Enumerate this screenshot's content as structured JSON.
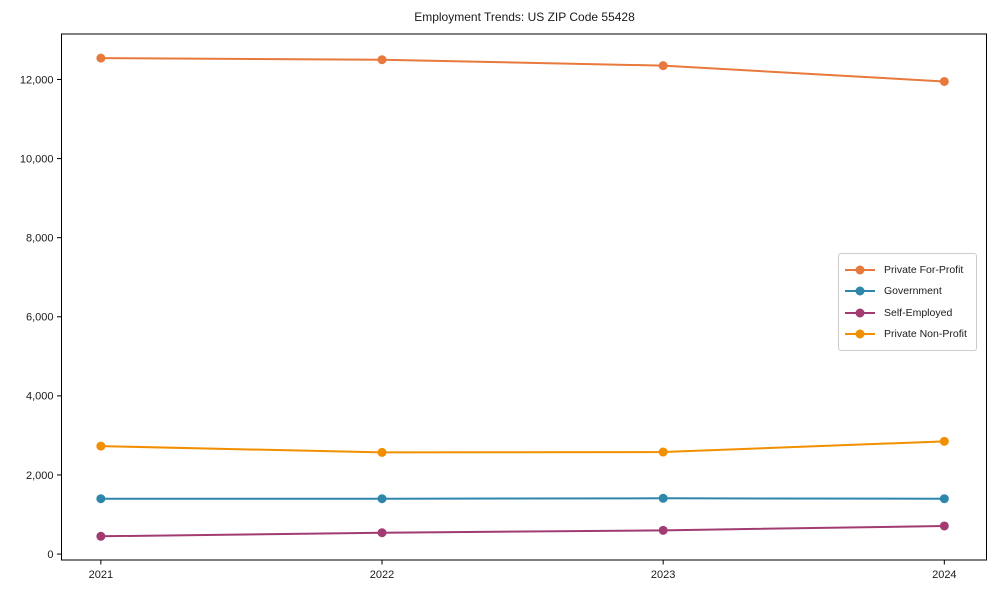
{
  "page": {
    "title": "Employment Trends: US ZIP Code 55428"
  },
  "chart_data": {
    "type": "line",
    "title": "Employment Trends: US ZIP Code 55428",
    "xlabel": "",
    "ylabel": "",
    "x": [
      2021,
      2022,
      2023,
      2024
    ],
    "x_tick_labels": [
      "2021",
      "2022",
      "2023",
      "2024"
    ],
    "y_ticks": [
      0,
      2000,
      4000,
      6000,
      8000,
      10000,
      12000
    ],
    "y_tick_labels": [
      "0",
      "2,000",
      "4,000",
      "6,000",
      "8,000",
      "10,000",
      "12,000"
    ],
    "xlim": [
      2020.86,
      2024.15
    ],
    "ylim": [
      -150,
      13150
    ],
    "grid": false,
    "legend_position": "center-right",
    "marker": "circle",
    "series": [
      {
        "name": "Private For-Profit",
        "color": "#E8793D",
        "values": [
          12540,
          12500,
          12350,
          11950
        ]
      },
      {
        "name": "Government",
        "color": "#2E86AB",
        "values": [
          1400,
          1400,
          1410,
          1400
        ]
      },
      {
        "name": "Self-Employed",
        "color": "#A23B72",
        "values": [
          450,
          540,
          600,
          710
        ]
      },
      {
        "name": "Private Non-Profit",
        "color": "#F18F01",
        "values": [
          2730,
          2570,
          2580,
          2850
        ]
      }
    ],
    "axis_color": "#000000",
    "text_color": "#1a1a1a"
  }
}
